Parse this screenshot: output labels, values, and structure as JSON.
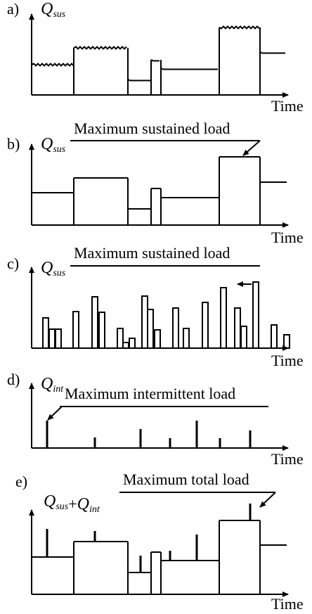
{
  "panels": [
    {
      "label": "a)",
      "ylabel": [
        {
          "text": "Q",
          "sub": "sus"
        }
      ],
      "xlabel": "Time"
    },
    {
      "label": "b)",
      "ylabel": [
        {
          "text": "Q",
          "sub": "sus"
        }
      ],
      "xlabel": "Time",
      "annotation": "Maximum sustained load"
    },
    {
      "label": "c)",
      "ylabel": [
        {
          "text": "Q",
          "sub": "sus"
        }
      ],
      "xlabel": "Time",
      "annotation": "Maximum sustained load"
    },
    {
      "label": "d)",
      "ylabel": [
        {
          "text": "Q",
          "sub": "int"
        }
      ],
      "xlabel": "Time",
      "annotation": "Maximum intermittent load"
    },
    {
      "label": "e)",
      "ylabel": [
        {
          "text": "Q",
          "sub": "sus"
        },
        {
          "text": "+"
        },
        {
          "text": "Q",
          "sub": "int"
        }
      ],
      "xlabel": "Time",
      "annotation": "Maximum total load"
    }
  ]
}
